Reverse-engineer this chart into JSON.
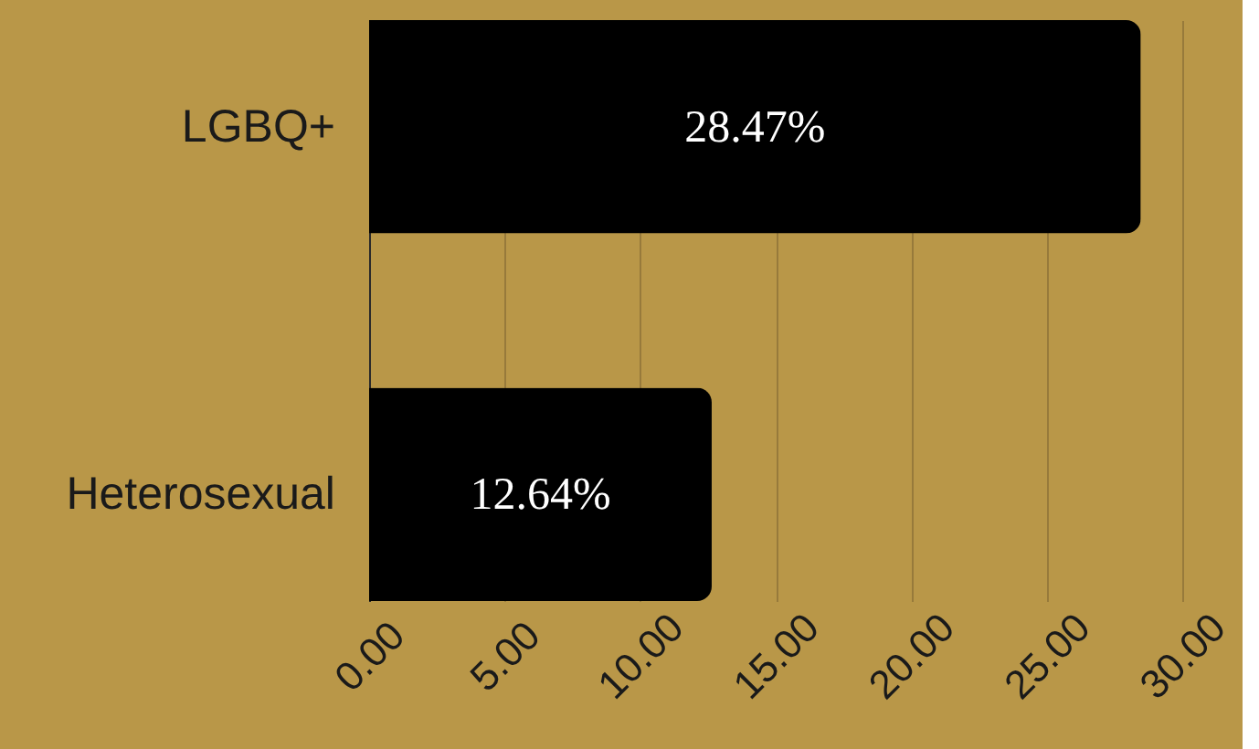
{
  "chart_data": {
    "type": "bar",
    "orientation": "horizontal",
    "categories": [
      "LGBQ+",
      "Heterosexual"
    ],
    "values": [
      28.47,
      12.64
    ],
    "color": "#000000",
    "value_labels": [
      "28.47%",
      "12.64%"
    ],
    "xlim": [
      0,
      30
    ],
    "xticks": [
      {
        "value": 0,
        "label": "0.00"
      },
      {
        "value": 5,
        "label": "5.00"
      },
      {
        "value": 10,
        "label": "10.00"
      },
      {
        "value": 15,
        "label": "15.00"
      },
      {
        "value": 20,
        "label": "20.00"
      },
      {
        "value": 25,
        "label": "25.00"
      },
      {
        "value": 30,
        "label": "30.00"
      }
    ],
    "grid": "x"
  }
}
